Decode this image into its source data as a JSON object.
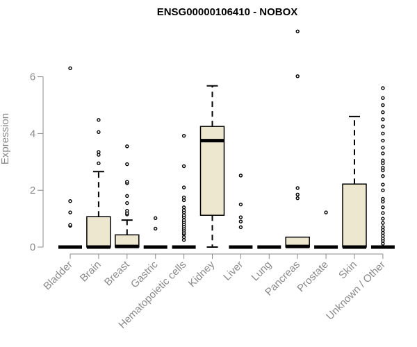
{
  "chart_data": {
    "type": "boxplot",
    "title": "ENSG00000106410 - NOBOX",
    "xlabel": "",
    "ylabel": "Expression",
    "ylim": [
      0,
      7.6
    ],
    "yticks": [
      0,
      2,
      4,
      6
    ],
    "grid": false,
    "colors": {
      "box_fill": "#ede7cf",
      "stroke": "#000000",
      "axis": "#8a8a8a"
    },
    "categories": [
      "Bladder",
      "Brain",
      "Breast",
      "Gastric",
      "Hematopoietic cells",
      "Kidney",
      "Liver",
      "Lung",
      "Pancreas",
      "Prostate",
      "Skin",
      "Unknown / Other"
    ],
    "boxes": [
      {
        "category": "Bladder",
        "q1": 0,
        "median": 0,
        "q3": 0,
        "whisker_low": 0,
        "whisker_high": 0,
        "outliers": [
          0.75,
          0.78,
          1.22,
          1.62,
          6.3
        ]
      },
      {
        "category": "Brain",
        "q1": 0,
        "median": 0,
        "q3": 1.07,
        "whisker_low": 0,
        "whisker_high": 2.66,
        "outliers": [
          2.95,
          3.25,
          3.35,
          4.05,
          4.48
        ]
      },
      {
        "category": "Breast",
        "q1": 0,
        "median": 0.02,
        "q3": 0.43,
        "whisker_low": 0,
        "whisker_high": 0.95,
        "outliers": [
          1.15,
          1.2,
          1.28,
          1.55,
          1.8,
          2.25,
          2.3,
          2.92,
          3.55
        ]
      },
      {
        "category": "Gastric",
        "q1": 0,
        "median": 0,
        "q3": 0,
        "whisker_low": 0,
        "whisker_high": 0,
        "outliers": [
          0.65,
          1.02
        ]
      },
      {
        "category": "Hematopoietic cells",
        "q1": 0,
        "median": 0,
        "q3": 0,
        "whisker_low": 0,
        "whisker_high": 0,
        "outliers": [
          0.25,
          0.35,
          0.45,
          0.5,
          0.58,
          0.65,
          0.72,
          0.8,
          0.88,
          0.95,
          1.05,
          1.12,
          1.22,
          1.3,
          1.4,
          1.65,
          1.75,
          2.1,
          2.85,
          3.92
        ]
      },
      {
        "category": "Kidney",
        "q1": 1.12,
        "median": 3.75,
        "q3": 4.25,
        "whisker_low": 0,
        "whisker_high": 5.68,
        "outliers": []
      },
      {
        "category": "Liver",
        "q1": 0,
        "median": 0,
        "q3": 0,
        "whisker_low": 0,
        "whisker_high": 0,
        "outliers": [
          0.7,
          0.9,
          1.05,
          1.5,
          2.52
        ]
      },
      {
        "category": "Lung",
        "q1": 0,
        "median": 0,
        "q3": 0,
        "whisker_low": 0,
        "whisker_high": 0,
        "outliers": []
      },
      {
        "category": "Pancreas",
        "q1": 0,
        "median": 0.02,
        "q3": 0.35,
        "whisker_low": 0,
        "whisker_high": 0.35,
        "outliers": [
          1.72,
          1.85,
          2.08,
          6.02,
          7.6
        ]
      },
      {
        "category": "Prostate",
        "q1": 0,
        "median": 0,
        "q3": 0,
        "whisker_low": 0,
        "whisker_high": 0,
        "outliers": [
          1.22
        ]
      },
      {
        "category": "Skin",
        "q1": 0,
        "median": 0,
        "q3": 2.22,
        "whisker_low": 0,
        "whisker_high": 4.6,
        "outliers": []
      },
      {
        "category": "Unknown / Other",
        "q1": 0,
        "median": 0,
        "q3": 0,
        "whisker_low": 0,
        "whisker_high": 0,
        "outliers": [
          0.12,
          0.22,
          0.3,
          0.4,
          0.5,
          0.6,
          0.7,
          0.85,
          1.0,
          1.2,
          1.4,
          1.6,
          1.7,
          2.0,
          2.2,
          2.5,
          2.7,
          2.8,
          2.95,
          3.05,
          3.3,
          3.5,
          3.75,
          4.0,
          4.25,
          4.5,
          4.75,
          5.0,
          5.25,
          5.6
        ]
      }
    ]
  }
}
